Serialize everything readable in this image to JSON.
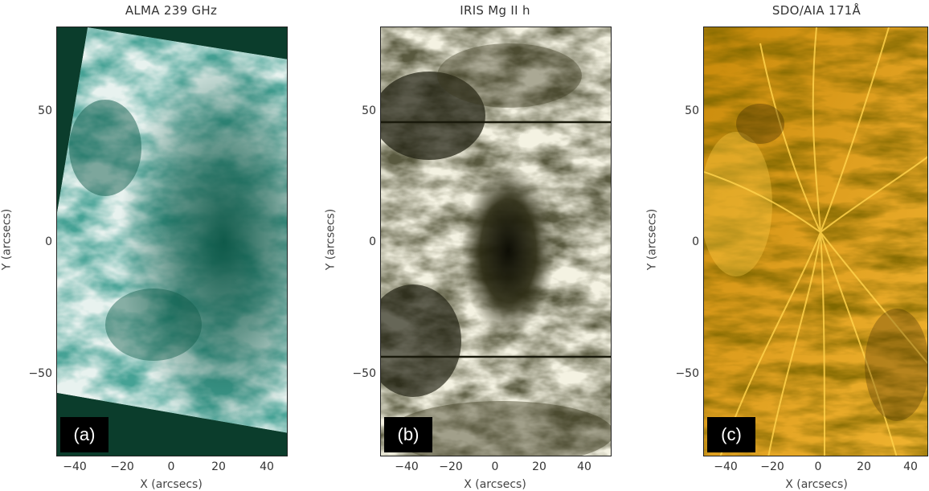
{
  "panels": [
    {
      "title": "ALMA 239 GHz",
      "label": "(a)",
      "ylabel": "Y (arcsecs)",
      "xlabel": "X (arcsecs)",
      "yticks": [
        "50",
        "0",
        "−50"
      ],
      "xticks": [
        "−40",
        "−20",
        "0",
        "20",
        "40"
      ],
      "colors": {
        "background": "#0b3d2c",
        "dark": "#0f5a4a",
        "mid": "#5d9a90",
        "light": "#e8f2ef"
      }
    },
    {
      "title": "IRIS Mg II h",
      "label": "(b)",
      "ylabel": "Y (arcsecs)",
      "xlabel": "X (arcsecs)",
      "yticks": [
        "50",
        "0",
        "−50"
      ],
      "xticks": [
        "−40",
        "−20",
        "0",
        "20",
        "40"
      ],
      "colors": {
        "dark": "#1a1a0c",
        "mid": "#6f6a45",
        "light": "#f4f2e2"
      }
    },
    {
      "title": "SDO/AIA 171Å",
      "label": "(c)",
      "ylabel": "Y (arcsecs)",
      "xlabel": "X (arcsecs)",
      "yticks": [
        "50",
        "0",
        "−50"
      ],
      "xticks": [
        "−40",
        "−20",
        "0",
        "20",
        "40"
      ],
      "colors": {
        "dark": "#3a2400",
        "mid": "#c88a0a",
        "light": "#ffd24a"
      }
    }
  ]
}
